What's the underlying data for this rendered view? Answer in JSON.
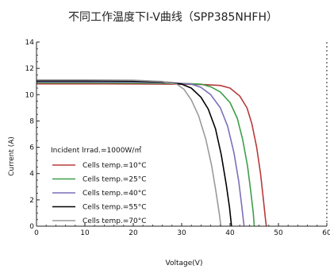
{
  "chart_data": {
    "type": "line",
    "title": "不同工作温度下I-V曲线（SPP385NHFH）",
    "xlabel": "Voltage(V)",
    "ylabel": "Current (A)",
    "xlim": [
      0,
      60
    ],
    "ylim": [
      0,
      14
    ],
    "xticks": [
      "0",
      "10",
      "20",
      "30",
      "40",
      "50",
      "60"
    ],
    "yticks": [
      "0",
      "2",
      "4",
      "6",
      "8",
      "10",
      "12",
      "14"
    ],
    "grid": false,
    "legend_title": "Incident lrrad.=1000W/㎡",
    "legend_position": "lower-left",
    "series": [
      {
        "name": "Cells temp.=10°C",
        "color": "#b83a3a",
        "points": [
          [
            0,
            10.82
          ],
          [
            10,
            10.82
          ],
          [
            20,
            10.81
          ],
          [
            30,
            10.8
          ],
          [
            35,
            10.76
          ],
          [
            38,
            10.7
          ],
          [
            40,
            10.5
          ],
          [
            42,
            9.9
          ],
          [
            43.5,
            9.0
          ],
          [
            44.5,
            7.8
          ],
          [
            45.5,
            6.0
          ],
          [
            46.3,
            4.0
          ],
          [
            46.9,
            2.0
          ],
          [
            47.3,
            0.6
          ],
          [
            47.5,
            0
          ]
        ]
      },
      {
        "name": "Cells temp.=25°C",
        "color": "#3e9e4a",
        "points": [
          [
            0,
            10.9
          ],
          [
            10,
            10.9
          ],
          [
            20,
            10.89
          ],
          [
            30,
            10.86
          ],
          [
            34,
            10.8
          ],
          [
            36,
            10.6
          ],
          [
            38,
            10.2
          ],
          [
            40,
            9.4
          ],
          [
            41.5,
            8.2
          ],
          [
            42.6,
            6.6
          ],
          [
            43.6,
            4.6
          ],
          [
            44.3,
            2.6
          ],
          [
            44.8,
            1.0
          ],
          [
            45.0,
            0
          ]
        ]
      },
      {
        "name": "Cells temp.=40°C",
        "color": "#7b6fb8",
        "points": [
          [
            0,
            10.97
          ],
          [
            10,
            10.97
          ],
          [
            20,
            10.96
          ],
          [
            28,
            10.9
          ],
          [
            32,
            10.8
          ],
          [
            34,
            10.55
          ],
          [
            36,
            10.0
          ],
          [
            38,
            9.0
          ],
          [
            39.5,
            7.6
          ],
          [
            40.8,
            5.6
          ],
          [
            41.8,
            3.4
          ],
          [
            42.4,
            1.6
          ],
          [
            42.8,
            0.3
          ],
          [
            42.9,
            0
          ]
        ]
      },
      {
        "name": "Cells temp.=55°C",
        "color": "#000000",
        "points": [
          [
            0,
            11.05
          ],
          [
            10,
            11.05
          ],
          [
            20,
            11.03
          ],
          [
            27,
            10.95
          ],
          [
            30,
            10.8
          ],
          [
            32,
            10.5
          ],
          [
            34,
            9.8
          ],
          [
            35.5,
            8.9
          ],
          [
            37,
            7.4
          ],
          [
            38.2,
            5.4
          ],
          [
            39.2,
            3.2
          ],
          [
            39.9,
            1.4
          ],
          [
            40.3,
            0
          ]
        ]
      },
      {
        "name": "Cells temp.=70°C",
        "color": "#9a9a9a",
        "points": [
          [
            0,
            11.12
          ],
          [
            10,
            11.12
          ],
          [
            20,
            11.1
          ],
          [
            26,
            11.0
          ],
          [
            29,
            10.8
          ],
          [
            30.5,
            10.4
          ],
          [
            32,
            9.6
          ],
          [
            33.5,
            8.4
          ],
          [
            35,
            6.6
          ],
          [
            36.2,
            4.6
          ],
          [
            37.1,
            2.6
          ],
          [
            37.8,
            0.9
          ],
          [
            38.1,
            0
          ]
        ]
      }
    ]
  }
}
